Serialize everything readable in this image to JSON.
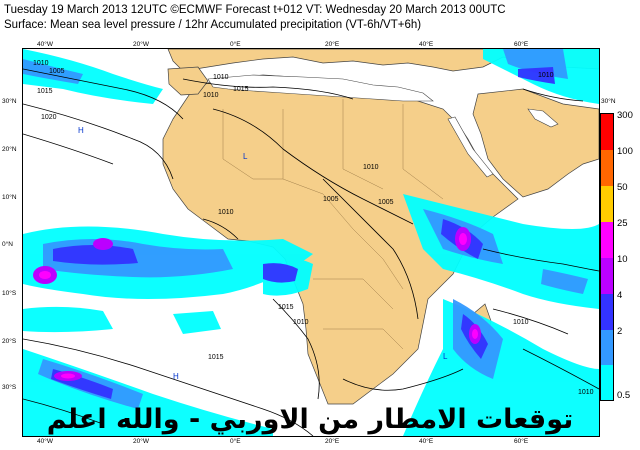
{
  "header": {
    "line1": "Tuesday 19 March 2013 12UTC ©ECMWF Forecast t+012 VT: Wednesday 20 March 2013 00UTC",
    "line2": "Surface: Mean sea level pressure / 12hr Accumulated precipitation (VT-6h/VT+6h)"
  },
  "lon_ticks": [
    "40°W",
    "20°W",
    "0°E",
    "20°E",
    "40°E",
    "60°E"
  ],
  "lat_ticks": [
    "30°N",
    "20°N",
    "10°N",
    "0°N",
    "10°S",
    "20°S",
    "30°S"
  ],
  "legend": {
    "labels": [
      "300",
      "100",
      "50",
      "25",
      "10",
      "4",
      "2",
      "0.5"
    ],
    "colors": [
      "#ff0000",
      "#ff6600",
      "#ffcc00",
      "#ff00ff",
      "#bb00ff",
      "#3333ff",
      "#3399ff",
      "#00ffff"
    ]
  },
  "isobar_labels": [
    "1010",
    "1005",
    "1015",
    "1020",
    "1010",
    "1015",
    "1010",
    "1010",
    "1005",
    "1010",
    "1015",
    "1010",
    "1015",
    "1010",
    "1005",
    "1010",
    "1010"
  ],
  "pressure_markers": [
    "H",
    "L",
    "H",
    "L"
  ],
  "overlay_text": "توقعات الامطار من الاوربي - والله اعلم",
  "colors": {
    "land": "#f5cf8a",
    "ocean": "#ffffff",
    "coast": "#444444",
    "isobar": "#000000"
  }
}
